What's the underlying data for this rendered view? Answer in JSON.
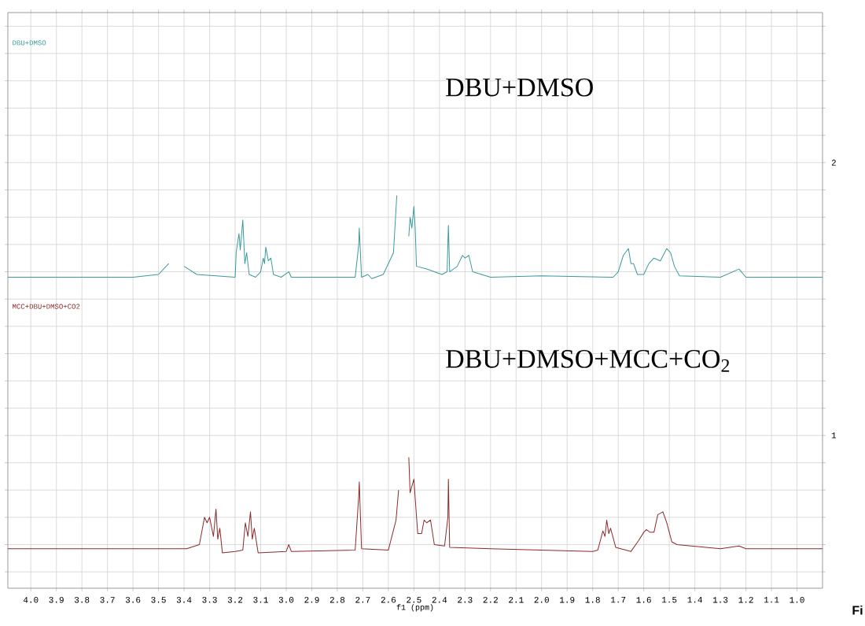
{
  "chart_data": {
    "type": "line",
    "xlabel": "f1 (ppm)",
    "annotations": [
      "DBU+DMSO",
      "DBU+DMSO+MCC+CO$_{2}$",
      "Fi"
    ],
    "xlim": [
      4.09,
      0.9
    ],
    "ylim": [
      0.44,
      2.55
    ],
    "xticks": [
      {
        "value": 4.0,
        "label": "4.0"
      },
      {
        "value": 3.9,
        "label": "3.9"
      },
      {
        "value": 3.8,
        "label": "3.8"
      },
      {
        "value": 3.7,
        "label": "3.7"
      },
      {
        "value": 3.6,
        "label": "3.6"
      },
      {
        "value": 3.5,
        "label": "3.5"
      },
      {
        "value": 3.4,
        "label": "3.4"
      },
      {
        "value": 3.3,
        "label": "3.3"
      },
      {
        "value": 3.2,
        "label": "3.2"
      },
      {
        "value": 3.1,
        "label": "3.1"
      },
      {
        "value": 3.0,
        "label": "3.0"
      },
      {
        "value": 2.9,
        "label": "2.9"
      },
      {
        "value": 2.8,
        "label": "2.8"
      },
      {
        "value": 2.7,
        "label": "2.7"
      },
      {
        "value": 2.6,
        "label": "2.6"
      },
      {
        "value": 2.5,
        "label": "2.5"
      },
      {
        "value": 2.4,
        "label": "2.4"
      },
      {
        "value": 2.3,
        "label": "2.3"
      },
      {
        "value": 2.2,
        "label": "2.2"
      },
      {
        "value": 2.1,
        "label": "2.1"
      },
      {
        "value": 2.0,
        "label": "2.0"
      },
      {
        "value": 1.9,
        "label": "1.9"
      },
      {
        "value": 1.8,
        "label": "1.8"
      },
      {
        "value": 1.7,
        "label": "1.7"
      },
      {
        "value": 1.6,
        "label": "1.6"
      },
      {
        "value": 1.5,
        "label": "1.5"
      },
      {
        "value": 1.4,
        "label": "1.4"
      },
      {
        "value": 1.3,
        "label": "1.3"
      },
      {
        "value": 1.2,
        "label": "1.2"
      },
      {
        "value": 1.1,
        "label": "1.1"
      },
      {
        "value": 1.0,
        "label": "1.0"
      }
    ],
    "yticks": [
      {
        "value": 0.5,
        "label": null
      },
      {
        "value": 0.6,
        "label": null
      },
      {
        "value": 0.7,
        "label": null
      },
      {
        "value": 0.8,
        "label": null
      },
      {
        "value": 0.9,
        "label": null
      },
      1,
      {
        "value": 1.1,
        "label": null
      },
      {
        "value": 1.2,
        "label": null
      },
      {
        "value": 1.3,
        "label": null
      },
      {
        "value": 1.4,
        "label": null
      },
      {
        "value": 1.5,
        "label": null
      },
      {
        "value": 1.6,
        "label": null
      },
      {
        "value": 1.7,
        "label": null
      },
      {
        "value": 1.8,
        "label": null
      },
      {
        "value": 1.9,
        "label": null
      },
      2,
      {
        "value": 2.1,
        "label": null
      },
      {
        "value": 2.2,
        "label": null
      },
      {
        "value": 2.3,
        "label": null
      },
      {
        "value": 2.4,
        "label": null
      },
      {
        "value": 2.5,
        "label": null
      }
    ],
    "grid": true,
    "marker": "none",
    "line_style": "solid",
    "series": [
      {
        "name": "DBU+DMSO",
        "color": "#3a9a9c",
        "x": [
          4.09,
          3.6,
          3.5,
          3.46,
          3.44,
          3.43,
          3.42,
          3.4,
          3.35,
          3.2,
          3.196,
          3.185,
          3.18,
          3.17,
          3.162,
          3.155,
          3.145,
          3.12,
          3.1,
          3.09,
          3.085,
          3.08,
          3.07,
          3.06,
          3.05,
          3.02,
          2.99,
          2.98,
          2.73,
          2.716,
          2.714,
          2.705,
          2.68,
          2.665,
          2.62,
          2.58,
          2.567,
          2.555,
          2.535,
          2.52,
          2.515,
          2.508,
          2.5,
          2.495,
          2.49,
          2.45,
          2.42,
          2.39,
          2.37,
          2.365,
          2.36,
          2.33,
          2.31,
          2.3,
          2.285,
          2.27,
          2.2,
          2.0,
          1.72,
          1.7,
          1.68,
          1.66,
          1.65,
          1.64,
          1.625,
          1.6,
          1.58,
          1.56,
          1.535,
          1.51,
          1.495,
          1.48,
          1.46,
          1.3,
          1.227,
          1.2,
          0.9
        ],
        "values": [
          1.58,
          1.58,
          1.59,
          1.63,
          null,
          null,
          null,
          1.62,
          1.59,
          1.58,
          1.67,
          1.74,
          1.68,
          1.79,
          1.63,
          1.67,
          1.59,
          1.58,
          1.6,
          1.65,
          1.63,
          1.69,
          1.64,
          1.65,
          1.59,
          1.58,
          1.6,
          1.58,
          1.58,
          1.7,
          1.76,
          1.58,
          1.59,
          1.575,
          1.59,
          1.67,
          1.88,
          null,
          null,
          1.73,
          1.8,
          1.76,
          1.84,
          1.76,
          1.62,
          1.61,
          1.6,
          1.59,
          1.6,
          1.77,
          1.6,
          1.62,
          1.66,
          1.65,
          1.66,
          1.6,
          1.58,
          1.585,
          1.58,
          1.6,
          1.66,
          1.685,
          1.63,
          1.63,
          1.59,
          1.59,
          1.63,
          1.65,
          1.64,
          1.685,
          1.67,
          1.62,
          1.585,
          1.58,
          1.61,
          1.58,
          1.58
        ]
      },
      {
        "name": "MCC+DBU+DMSO+CO2",
        "color": "#8b2a2a",
        "x": [
          4.09,
          3.39,
          3.34,
          3.32,
          3.31,
          3.3,
          3.285,
          3.275,
          3.268,
          3.26,
          3.25,
          3.2,
          3.17,
          3.16,
          3.15,
          3.14,
          3.133,
          3.125,
          3.11,
          3.0,
          2.99,
          2.98,
          2.73,
          2.716,
          2.714,
          2.705,
          2.6,
          2.57,
          2.56,
          2.555,
          2.535,
          2.52,
          2.515,
          2.5,
          2.495,
          2.485,
          2.47,
          2.46,
          2.45,
          2.435,
          2.42,
          2.38,
          2.367,
          2.365,
          2.36,
          2.2,
          1.8,
          1.78,
          1.76,
          1.752,
          1.745,
          1.737,
          1.73,
          1.71,
          1.65,
          1.62,
          1.6,
          1.59,
          1.575,
          1.56,
          1.545,
          1.525,
          1.51,
          1.49,
          1.47,
          1.3,
          1.227,
          1.2,
          0.9
        ],
        "values": [
          0.585,
          0.585,
          0.6,
          0.7,
          0.68,
          0.7,
          0.63,
          0.73,
          0.62,
          0.66,
          0.57,
          0.575,
          0.58,
          0.68,
          0.63,
          0.72,
          0.62,
          0.66,
          0.57,
          0.575,
          0.6,
          0.575,
          0.58,
          0.78,
          0.83,
          0.585,
          0.58,
          0.69,
          0.8,
          null,
          null,
          0.92,
          0.79,
          0.84,
          0.77,
          0.64,
          0.64,
          0.69,
          0.68,
          0.69,
          0.6,
          0.595,
          0.7,
          0.84,
          0.59,
          0.585,
          0.575,
          0.58,
          0.65,
          0.63,
          0.69,
          0.64,
          0.66,
          0.59,
          0.575,
          0.615,
          0.645,
          0.655,
          0.645,
          0.645,
          0.71,
          0.72,
          0.68,
          0.61,
          0.6,
          0.585,
          0.595,
          0.585,
          0.585
        ]
      }
    ]
  }
}
